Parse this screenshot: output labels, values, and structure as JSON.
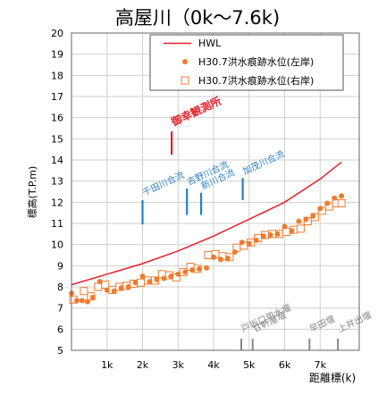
{
  "chart_data": {
    "type": "scatter",
    "title": "高屋川（0k～7.6k)",
    "xlabel": "距離標(k)",
    "ylabel": "標高(T.P.m)",
    "xlim": [
      0,
      8.1
    ],
    "ylim": [
      5,
      20
    ],
    "x_tick_values": [
      1,
      2,
      3,
      4,
      5,
      6,
      7
    ],
    "x_tick_labels": [
      "1k",
      "2k",
      "3k",
      "4k",
      "5k",
      "6k",
      "7k"
    ],
    "y_ticks": [
      5,
      6,
      7,
      8,
      9,
      10,
      11,
      12,
      13,
      14,
      15,
      16,
      17,
      18,
      19,
      20
    ],
    "grid": true,
    "legend_position": "top-right",
    "colors": {
      "hwl": "#e8202a",
      "left": "#f07b2e",
      "right": "#f07b2e",
      "marker_blue": "#2a7fc1",
      "marker_red": "#e8202a",
      "marker_gray": "#888888"
    },
    "series": [
      {
        "name": "HWL",
        "kind": "line",
        "x": [
          0,
          1,
          2,
          3,
          4,
          5,
          6,
          7,
          7.6
        ],
        "y": [
          8.1,
          8.6,
          9.1,
          9.7,
          10.4,
          11.2,
          12.0,
          13.1,
          13.9
        ]
      },
      {
        "name": "H30.7洪水痕跡水位(左岸)",
        "kind": "dot",
        "x": [
          0,
          0.15,
          0.3,
          0.45,
          0.6,
          0.8,
          1.0,
          1.2,
          1.4,
          1.6,
          1.8,
          2.0,
          2.2,
          2.4,
          2.6,
          2.8,
          3.0,
          3.2,
          3.4,
          3.6,
          3.8,
          4.0,
          4.2,
          4.4,
          4.6,
          4.8,
          5.0,
          5.2,
          5.4,
          5.6,
          5.8,
          6.0,
          6.2,
          6.4,
          6.6,
          6.8,
          7.0,
          7.2,
          7.4,
          7.6
        ],
        "y": [
          7.7,
          7.35,
          7.35,
          7.3,
          7.5,
          8.25,
          7.85,
          7.8,
          7.95,
          8.0,
          8.2,
          8.5,
          8.25,
          8.35,
          8.4,
          8.5,
          8.6,
          8.7,
          8.8,
          8.85,
          8.9,
          9.4,
          9.3,
          9.35,
          9.65,
          10.1,
          10.05,
          10.2,
          10.4,
          10.45,
          10.5,
          10.85,
          10.65,
          11.1,
          11.2,
          11.35,
          11.7,
          11.95,
          12.2,
          12.3
        ]
      },
      {
        "name": "H30.7洪水痕跡水位(右岸)",
        "kind": "square",
        "x": [
          0.05,
          0.35,
          0.55,
          0.75,
          0.95,
          1.15,
          1.35,
          1.55,
          1.75,
          1.95,
          2.15,
          2.35,
          2.55,
          2.75,
          2.95,
          3.15,
          3.35,
          3.55,
          3.85,
          4.05,
          4.25,
          4.45,
          4.65,
          4.85,
          5.05,
          5.25,
          5.45,
          5.65,
          5.85,
          6.05,
          6.25,
          6.45,
          6.65,
          6.85,
          7.05,
          7.25,
          7.45,
          7.6
        ],
        "y": [
          7.4,
          7.8,
          7.55,
          8.0,
          8.1,
          7.85,
          8.0,
          8.05,
          8.15,
          8.2,
          8.3,
          8.3,
          8.6,
          8.55,
          8.45,
          8.7,
          8.95,
          8.85,
          9.5,
          9.55,
          9.45,
          9.4,
          9.85,
          9.95,
          10.1,
          10.3,
          10.45,
          10.5,
          10.5,
          10.6,
          10.7,
          10.75,
          11.1,
          11.3,
          11.6,
          11.8,
          11.95,
          11.95
        ]
      }
    ],
    "annotations": [
      {
        "label": "御幸観測所",
        "x": 2.82,
        "y0": 14.25,
        "y1": 15.35,
        "color_key": "marker_red",
        "label_y": 15.6,
        "fontsize": 12,
        "bold": true
      },
      {
        "label": "千田川合流",
        "x": 2.0,
        "y0": 10.95,
        "y1": 12.1,
        "color_key": "marker_blue",
        "label_y": 12.3,
        "fontsize": 10,
        "bold": false
      },
      {
        "label": "吉野川合流",
        "x": 3.25,
        "y0": 11.4,
        "y1": 12.65,
        "color_key": "marker_blue",
        "label_y": 12.8,
        "fontsize": 10,
        "bold": false
      },
      {
        "label": "新川合流",
        "x": 3.65,
        "y0": 11.4,
        "y1": 12.45,
        "color_key": "marker_blue",
        "label_y": 12.6,
        "fontsize": 10,
        "bold": false
      },
      {
        "label": "加茂川合流",
        "x": 4.82,
        "y0": 12.1,
        "y1": 13.15,
        "color_key": "marker_blue",
        "label_y": 13.3,
        "fontsize": 10,
        "bold": false
      },
      {
        "label": "戸坂口用水堰",
        "x": 4.78,
        "y0": 5.0,
        "y1": 5.55,
        "color_key": "marker_gray",
        "label_y": 5.85,
        "fontsize": 10,
        "bold": false
      },
      {
        "label": "甘軒屋堰",
        "x": 5.1,
        "y0": 5.0,
        "y1": 5.55,
        "color_key": "marker_gray",
        "label_y": 5.85,
        "fontsize": 10,
        "bold": false
      },
      {
        "label": "早田堰",
        "x": 6.7,
        "y0": 5.0,
        "y1": 5.55,
        "color_key": "marker_gray",
        "label_y": 5.85,
        "fontsize": 10,
        "bold": false
      },
      {
        "label": "上井出堰",
        "x": 7.5,
        "y0": 5.0,
        "y1": 5.55,
        "color_key": "marker_gray",
        "label_y": 5.85,
        "fontsize": 10,
        "bold": false
      }
    ]
  }
}
